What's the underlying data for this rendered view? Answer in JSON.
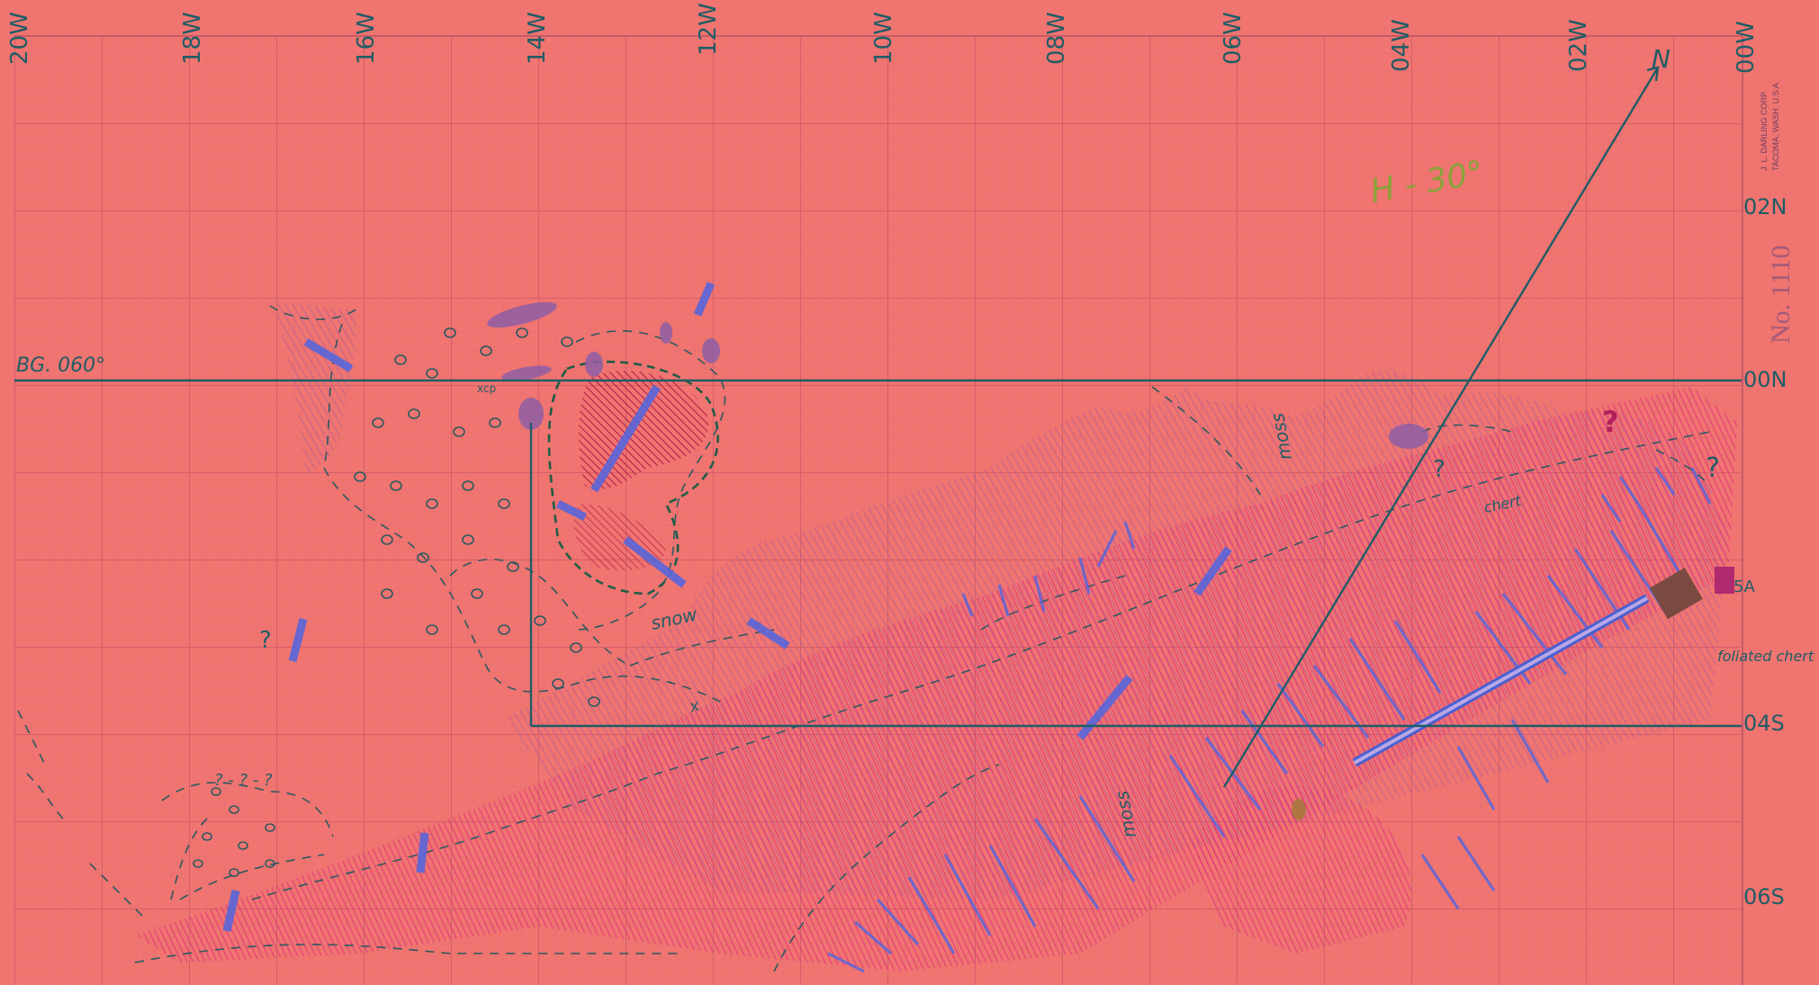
{
  "paper": {
    "maker_line1": "J. L. DARLING CORP.",
    "maker_line2": "TACOMA, WASH. U.S.A.",
    "sheet_number": "No. 1110"
  },
  "grid": {
    "x_labels": [
      "20W",
      "18W",
      "16W",
      "14W",
      "12W",
      "10W",
      "08W",
      "06W",
      "04W",
      "02W",
      "00W"
    ],
    "y_labels": [
      "02N",
      "00N",
      "04S",
      "06S"
    ]
  },
  "annotations": {
    "baseline": "BG. 060°",
    "north": "N",
    "bearing": "H - 30°",
    "snow": "snow",
    "moss_1": "moss",
    "moss_2": "moss",
    "outcrop": "xcp",
    "contact_dip": "x",
    "station": "5A",
    "feature": "foliated chert",
    "chert": "chert",
    "q_west": "?",
    "q_red": "?",
    "q_east": "?",
    "q_center": "?",
    "q_lower": "? - ? - ?"
  },
  "colors": {
    "paper": "#f07470",
    "grid_major": "#c65b68",
    "grid_minor": "#e07077",
    "ink": "#1f5d66",
    "pencil_blue": "#5b67d8",
    "pink_hatch": "#e2307a",
    "purple_shade": "#b05fa0",
    "green_pencil": "#8aa23a"
  }
}
